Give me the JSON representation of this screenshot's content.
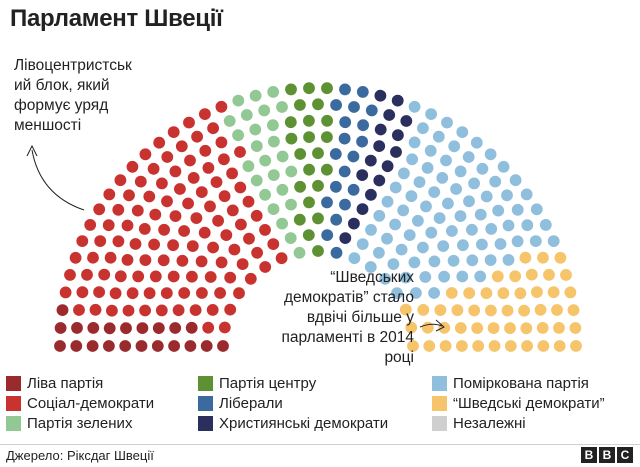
{
  "title": "Парламент Швеції",
  "annotations": {
    "left_lines": [
      "Лівоцентристськ",
      "ий блок, який",
      "формує уряд",
      "меншості"
    ],
    "right_lines": [
      "“Шведських",
      "демократів” стало",
      "вдвічі більше у",
      "парламенті в 2014",
      "році"
    ]
  },
  "source": "Джерело: Ріксдаг Швеції",
  "logo": [
    "B",
    "B",
    "C"
  ],
  "chart_data": {
    "type": "hemicycle",
    "title": "Парламент Швеції",
    "total_seats": 349,
    "series": [
      {
        "name": "Ліва партія",
        "seats": 21,
        "color": "#9b2a2d"
      },
      {
        "name": "Соціал-демократи",
        "seats": 113,
        "color": "#c9332f"
      },
      {
        "name": "Партія зелених",
        "seats": 25,
        "color": "#92c893"
      },
      {
        "name": "Партія центру",
        "seats": 22,
        "color": "#5d9133"
      },
      {
        "name": "Ліберали",
        "seats": 19,
        "color": "#3b6a9e"
      },
      {
        "name": "Християнські демократи",
        "seats": 16,
        "color": "#2a2f5e"
      },
      {
        "name": "Поміркована партія",
        "seats": 84,
        "color": "#90bfde"
      },
      {
        "name": "“Шведські демократи”",
        "seats": 49,
        "color": "#f6c46b"
      },
      {
        "name": "Незалежні",
        "seats": 0,
        "color": "#cfcfcf"
      }
    ]
  },
  "legend": {
    "columns": [
      [
        0,
        1,
        2
      ],
      [
        3,
        4,
        5
      ],
      [
        6,
        7,
        8
      ]
    ]
  }
}
